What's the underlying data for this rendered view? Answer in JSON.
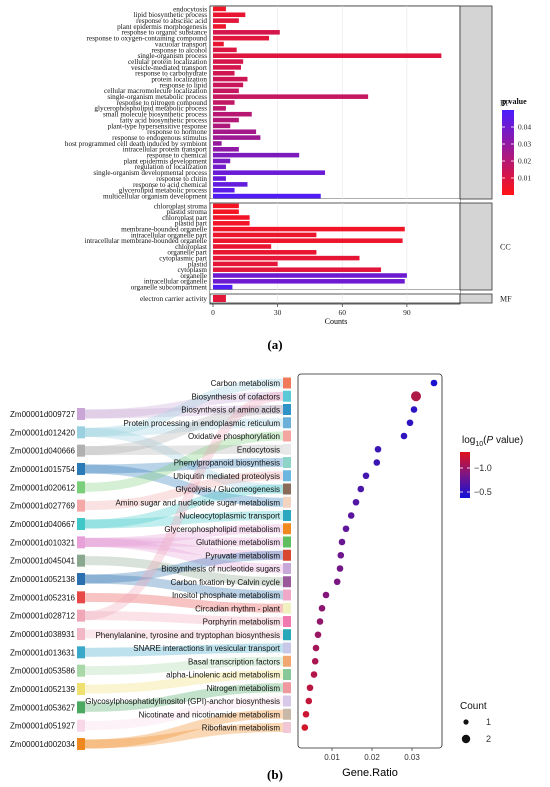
{
  "panels": {
    "a_label": "(a)",
    "b_label": "(b)"
  },
  "chart_data": [
    {
      "type": "bar",
      "orientation": "horizontal",
      "xlabel": "Counts",
      "xticks": [
        0,
        30,
        60,
        90
      ],
      "xlim": [
        0,
        110
      ],
      "legend": {
        "title": "p value",
        "ticks": [
          0.04,
          0.03,
          0.02,
          0.01
        ],
        "range": [
          0.0,
          0.05
        ],
        "low_color": "#ff1414",
        "high_color": "#4a1cff",
        "placement": "right"
      },
      "facets": [
        {
          "name": "BP",
          "categories": [
            "endocytosis",
            "lipid biosynthetic process",
            "response to abscisic acid",
            "plant epidermis morphogenesis",
            "response to organic substance",
            "response to oxygen-containing compound",
            "vacuolar transport",
            "response to alcohol",
            "single-organism process",
            "cellular protein localization",
            "vesicle-mediated transport",
            "response to carbohydrate",
            "protein localization",
            "response to lipid",
            "cellular macromolecule localization",
            "single-organism metabolic process",
            "response to nitrogen compound",
            "glycerophospholipid metabolic process",
            "small molecule biosynthetic process",
            "fatty acid biosynthetic process",
            "plant-type hypersensitive response",
            "response to hormone",
            "response to endogenous stimulus",
            "host programmed cell death induced by symbiont",
            "intracellular protein transport",
            "response to chemical",
            "plant epidermis development",
            "regulation of localization",
            "single-organism developmental process",
            "response to chitin",
            "response to acid chemical",
            "glycerolipid metabolic process",
            "multicellular organism development"
          ],
          "values": [
            6,
            15,
            12,
            6,
            31,
            26,
            5,
            11,
            106,
            14,
            13,
            10,
            16,
            14,
            12,
            72,
            10,
            6,
            18,
            12,
            8,
            20,
            22,
            4,
            12,
            40,
            8,
            6,
            52,
            6,
            16,
            10,
            50
          ],
          "pvalues": [
            0.004,
            0.006,
            0.008,
            0.005,
            0.012,
            0.008,
            0.006,
            0.01,
            0.009,
            0.012,
            0.012,
            0.013,
            0.014,
            0.015,
            0.016,
            0.016,
            0.017,
            0.019,
            0.02,
            0.021,
            0.022,
            0.025,
            0.027,
            0.029,
            0.031,
            0.036,
            0.037,
            0.039,
            0.041,
            0.042,
            0.043,
            0.045,
            0.048
          ]
        },
        {
          "name": "CC",
          "categories": [
            "chloroplast stroma",
            "plastid stroma",
            "chloroplast part",
            "plastid part",
            "membrane-bounded organelle",
            "intracellular organelle part",
            "intracellular membrane-bounded organelle",
            "chloroplast",
            "organelle part",
            "cytoplasmic part",
            "plastid",
            "cytoplasm",
            "organelle",
            "intracellular organelle",
            "organelle subcompartment"
          ],
          "values": [
            12,
            12,
            17,
            17,
            89,
            48,
            88,
            27,
            48,
            68,
            30,
            78,
            90,
            89,
            9
          ],
          "pvalues": [
            0.003,
            0.003,
            0.004,
            0.004,
            0.004,
            0.005,
            0.005,
            0.006,
            0.006,
            0.007,
            0.007,
            0.008,
            0.04,
            0.04,
            0.048
          ]
        },
        {
          "name": "MF",
          "categories": [
            "electron carrier activity"
          ],
          "values": [
            6
          ],
          "pvalues": [
            0.008
          ]
        }
      ]
    },
    {
      "type": "scatter",
      "xlabel": "Gene.Ratio",
      "xticks": [
        0.01,
        0.02,
        0.03
      ],
      "xlim": [
        0.0015,
        0.0375
      ],
      "color_legend": {
        "title_prefix": "log",
        "title_sub": "10",
        "title_paren": "(",
        "title_var": "P",
        "title_suffix": " value)",
        "ticks": [
          "−1.0",
          "−0.5"
        ],
        "low_color": "#1010d8",
        "high_color": "#e0101a",
        "placement": "right"
      },
      "size_legend": {
        "title": "Count",
        "labels": [
          "1",
          "2"
        ]
      },
      "pathways": [
        {
          "name": "Carbon metabolism",
          "ratio": 0.0355,
          "count": 1,
          "color": "#1a10d0",
          "bar": "#f07a5a"
        },
        {
          "name": "Biosynthesis of cofactors",
          "ratio": 0.031,
          "count": 2,
          "color": "#b01848",
          "bar": "#5bc8d8"
        },
        {
          "name": "Biosynthesis of amino acids",
          "ratio": 0.0305,
          "count": 1,
          "color": "#2a14c4",
          "bar": "#2f93c7"
        },
        {
          "name": "Protein processing in endoplasmic reticulum",
          "ratio": 0.0295,
          "count": 1,
          "color": "#2d14c0",
          "bar": "#6ab0d8"
        },
        {
          "name": "Oxidative phosphorylation",
          "ratio": 0.028,
          "count": 1,
          "color": "#3014bd",
          "bar": "#f4a5a0"
        },
        {
          "name": "Endocytosis",
          "ratio": 0.0215,
          "count": 1,
          "color": "#3a15b8",
          "bar": "#e8e8e8"
        },
        {
          "name": "Phenylpropanoid biosynthesis",
          "ratio": 0.0212,
          "count": 1,
          "color": "#3c15b6",
          "bar": "#8fd4c8"
        },
        {
          "name": "Ubiquitin mediated proteolysis",
          "ratio": 0.0185,
          "count": 1,
          "color": "#4416b0",
          "bar": "#6bb7e0"
        },
        {
          "name": "Glycolysis / Gluconeogenesis",
          "ratio": 0.0172,
          "count": 1,
          "color": "#4a16aa",
          "bar": "#8a6a58"
        },
        {
          "name": "Amino sugar and nucleotide sugar metabolism",
          "ratio": 0.016,
          "count": 1,
          "color": "#5216a4",
          "bar": "#f2d4c0"
        },
        {
          "name": "Nucleocytoplasmic transport",
          "ratio": 0.0148,
          "count": 1,
          "color": "#58169e",
          "bar": "#2aa8c0"
        },
        {
          "name": "Glycerophospholipid metabolism",
          "ratio": 0.0135,
          "count": 1,
          "color": "#601698",
          "bar": "#f08a20"
        },
        {
          "name": "Glutathione metabolism",
          "ratio": 0.0125,
          "count": 1,
          "color": "#681692",
          "bar": "#5fbf60"
        },
        {
          "name": "Pyruvate metabolism",
          "ratio": 0.0122,
          "count": 1,
          "color": "#6e168c",
          "bar": "#d84830"
        },
        {
          "name": "Biosynthesis of nucleotide sugars",
          "ratio": 0.012,
          "count": 1,
          "color": "#721688",
          "bar": "#c8a8d8"
        },
        {
          "name": "Carbon fixation by Calvin cycle",
          "ratio": 0.0113,
          "count": 1,
          "color": "#7a1682",
          "bar": "#9a5a9a"
        },
        {
          "name": "Inositol phosphate metabolism",
          "ratio": 0.0085,
          "count": 1,
          "color": "#82167a",
          "bar": "#f0a8c8"
        },
        {
          "name": "Circadian rhythm - plant",
          "ratio": 0.0075,
          "count": 1,
          "color": "#8a1672",
          "bar": "#f0f0c0"
        },
        {
          "name": "Porphyrin metabolism",
          "ratio": 0.007,
          "count": 1,
          "color": "#92166a",
          "bar": "#f07ab0"
        },
        {
          "name": "Phenylalanine, tyrosine and tryptophan biosynthesis",
          "ratio": 0.0065,
          "count": 1,
          "color": "#9a1662",
          "bar": "#28a8b8"
        },
        {
          "name": "SNARE interactions in vesicular transport",
          "ratio": 0.006,
          "count": 1,
          "color": "#a2165a",
          "bar": "#c8c8e8"
        },
        {
          "name": "Basal transcription factors",
          "ratio": 0.0058,
          "count": 1,
          "color": "#aa1652",
          "bar": "#f0a870"
        },
        {
          "name": "alpha-Linolenic acid metabolism",
          "ratio": 0.0055,
          "count": 1,
          "color": "#b2164a",
          "bar": "#88c898"
        },
        {
          "name": "Nitrogen metabolism",
          "ratio": 0.0045,
          "count": 1,
          "color": "#ba1642",
          "bar": "#f098a0"
        },
        {
          "name": "Glycosylphosphatidylinositol (GPI)-anchor biosynthesis",
          "ratio": 0.0042,
          "count": 1,
          "color": "#c2163a",
          "bar": "#d8c8e8"
        },
        {
          "name": "Nicotinate and nicotinamide metabolism",
          "ratio": 0.0035,
          "count": 1,
          "color": "#ca1632",
          "bar": "#c8b8a8"
        },
        {
          "name": "Riboflavin metabolism",
          "ratio": 0.0032,
          "count": 1,
          "color": "#d2162a",
          "bar": "#f0c8d8"
        }
      ],
      "genes": [
        {
          "id": "Zm00001d009727",
          "color": "#c9a6d6"
        },
        {
          "id": "Zm00001d012420",
          "color": "#9ad0e0"
        },
        {
          "id": "Zm00001d040666",
          "color": "#b0b0b0"
        },
        {
          "id": "Zm00001d015754",
          "color": "#2a7ab8"
        },
        {
          "id": "Zm00001d020612",
          "color": "#7ccf7a"
        },
        {
          "id": "Zm00001d027769",
          "color": "#f4a8a8"
        },
        {
          "id": "Zm00001d040667",
          "color": "#40c8c8"
        },
        {
          "id": "Zm00001d010321",
          "color": "#e8a0d8"
        },
        {
          "id": "Zm00001d045041",
          "color": "#8aa890"
        },
        {
          "id": "Zm00001d052138",
          "color": "#2a70b0"
        },
        {
          "id": "Zm00001d052316",
          "color": "#e84848"
        },
        {
          "id": "Zm00001d028712",
          "color": "#f0a8b8"
        },
        {
          "id": "Zm00001d038931",
          "color": "#f2b8c8"
        },
        {
          "id": "Zm00001d013631",
          "color": "#3aa8c8"
        },
        {
          "id": "Zm00001d053586",
          "color": "#a8d8a8"
        },
        {
          "id": "Zm00001d052139",
          "color": "#f0e070"
        },
        {
          "id": "Zm00001d053627",
          "color": "#4aa860"
        },
        {
          "id": "Zm00001d051927",
          "color": "#f8d8e8"
        },
        {
          "id": "Zm00001d002034",
          "color": "#f08820"
        }
      ],
      "links": [
        [
          0,
          1
        ],
        [
          0,
          2
        ],
        [
          1,
          0
        ],
        [
          1,
          3
        ],
        [
          1,
          8
        ],
        [
          2,
          2
        ],
        [
          2,
          5
        ],
        [
          3,
          6
        ],
        [
          3,
          9
        ],
        [
          4,
          4
        ],
        [
          5,
          7
        ],
        [
          6,
          8
        ],
        [
          6,
          10
        ],
        [
          7,
          11
        ],
        [
          7,
          12
        ],
        [
          7,
          13
        ],
        [
          7,
          14
        ],
        [
          8,
          15
        ],
        [
          9,
          16
        ],
        [
          9,
          13
        ],
        [
          10,
          17
        ],
        [
          11,
          18
        ],
        [
          11,
          1
        ],
        [
          12,
          19
        ],
        [
          13,
          20
        ],
        [
          14,
          21
        ],
        [
          15,
          22
        ],
        [
          16,
          23
        ],
        [
          17,
          24
        ],
        [
          18,
          25
        ],
        [
          18,
          26
        ]
      ]
    }
  ]
}
